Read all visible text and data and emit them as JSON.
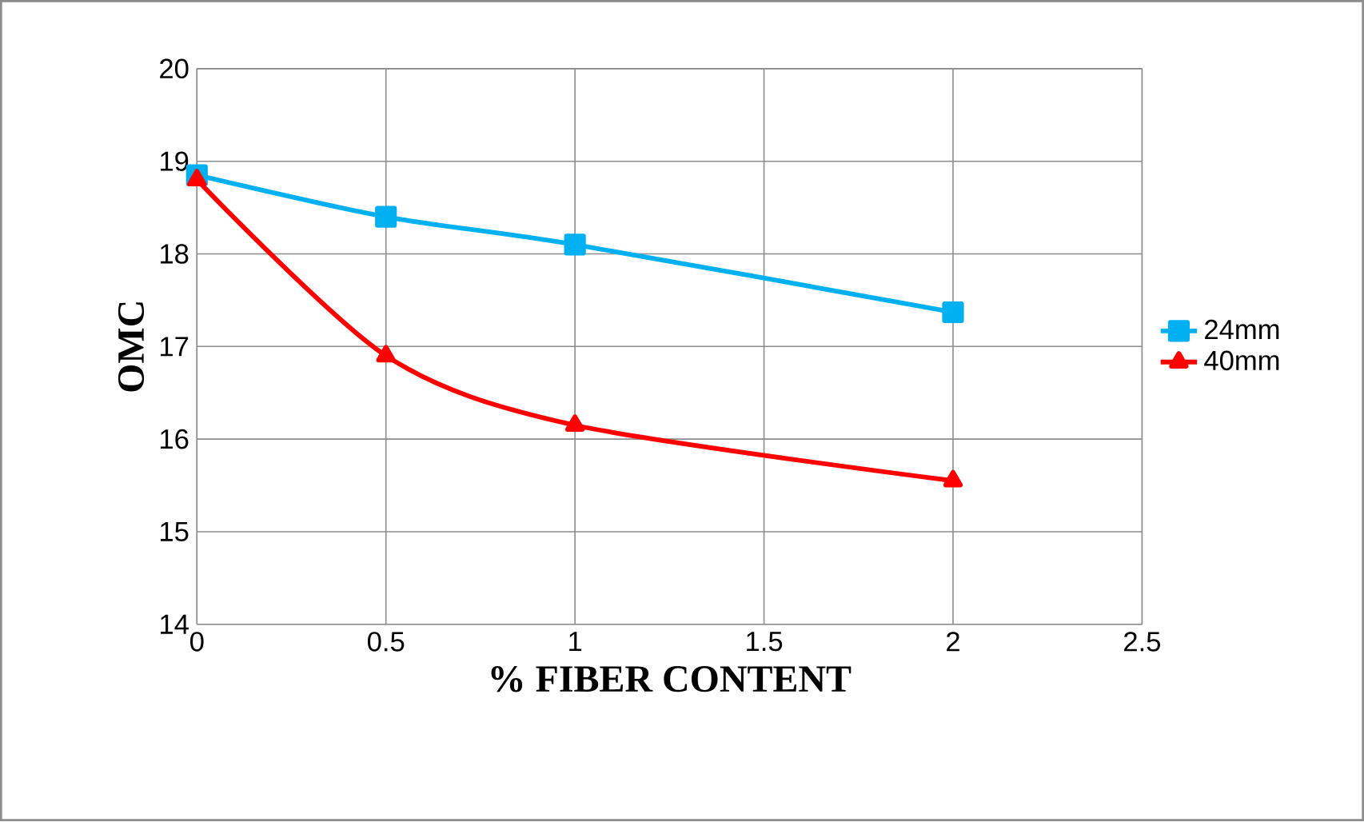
{
  "chart_data": {
    "type": "line",
    "xlabel": "% FIBER CONTENT",
    "ylabel": "OMC",
    "x": [
      0,
      0.5,
      1,
      2
    ],
    "series": [
      {
        "name": "24mm",
        "color": "#00b0f0",
        "values": [
          18.85,
          18.4,
          18.1,
          17.37
        ],
        "marker": "square"
      },
      {
        "name": "40mm",
        "color": "#ff0000",
        "values": [
          18.8,
          16.9,
          16.15,
          15.55
        ],
        "marker": "triangle"
      }
    ],
    "xlim": [
      0,
      2.5
    ],
    "xticks": [
      0,
      0.5,
      1,
      1.5,
      2,
      2.5
    ],
    "ylim": [
      14,
      20
    ],
    "yticks": [
      14,
      15,
      16,
      17,
      18,
      19,
      20
    ],
    "grid": true,
    "legend": "right"
  }
}
